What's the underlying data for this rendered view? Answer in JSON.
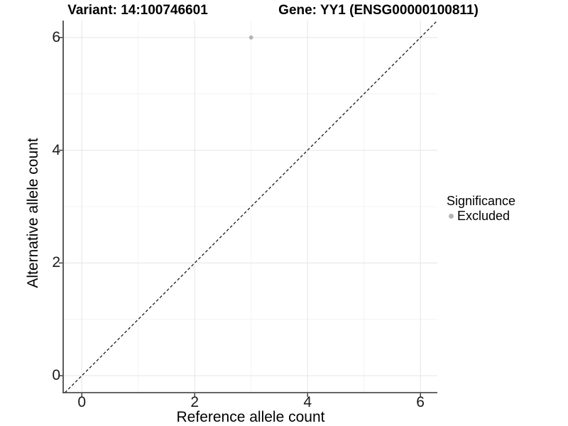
{
  "figure": {
    "title_variant": "Variant: 14:100746601",
    "title_gene": "Gene: YY1 (ENSG00000100811)"
  },
  "axes": {
    "xlabel": "Reference allele count",
    "ylabel": "Alternative allele count"
  },
  "legend": {
    "title": "Significance",
    "position": "right",
    "items": [
      {
        "label": "Excluded",
        "color": "#b4b4b4",
        "marker": "circle"
      }
    ]
  },
  "chart_data": {
    "type": "scatter",
    "title": "Variant: 14:100746601    Gene: YY1 (ENSG00000100811)",
    "xlabel": "Reference allele count",
    "ylabel": "Alternative allele count",
    "xlim": [
      -0.33,
      6.3
    ],
    "ylim": [
      -0.3,
      6.3
    ],
    "x_major_ticks": [
      0,
      2,
      4,
      6
    ],
    "y_major_ticks": [
      0,
      2,
      4,
      6
    ],
    "x_minor_gridlines": [
      1,
      3,
      5
    ],
    "y_minor_gridlines": [
      1,
      3,
      5
    ],
    "grid": "major+minor",
    "legend_position": "right",
    "series": [
      {
        "name": "Excluded",
        "color": "#b4b4b4",
        "points": [
          {
            "x": 3,
            "y": 6
          }
        ]
      }
    ],
    "reference_line": {
      "type": "identity",
      "slope": 1,
      "intercept": 0,
      "style": "dashed",
      "color": "#1a1a1a"
    }
  },
  "colors": {
    "background": "#ffffff",
    "axis_line": "#333333",
    "grid_major": "#e9e9e9",
    "grid_minor": "#f4f4f4",
    "tick_text": "#1a1a1a",
    "point": "#b4b4b4"
  }
}
